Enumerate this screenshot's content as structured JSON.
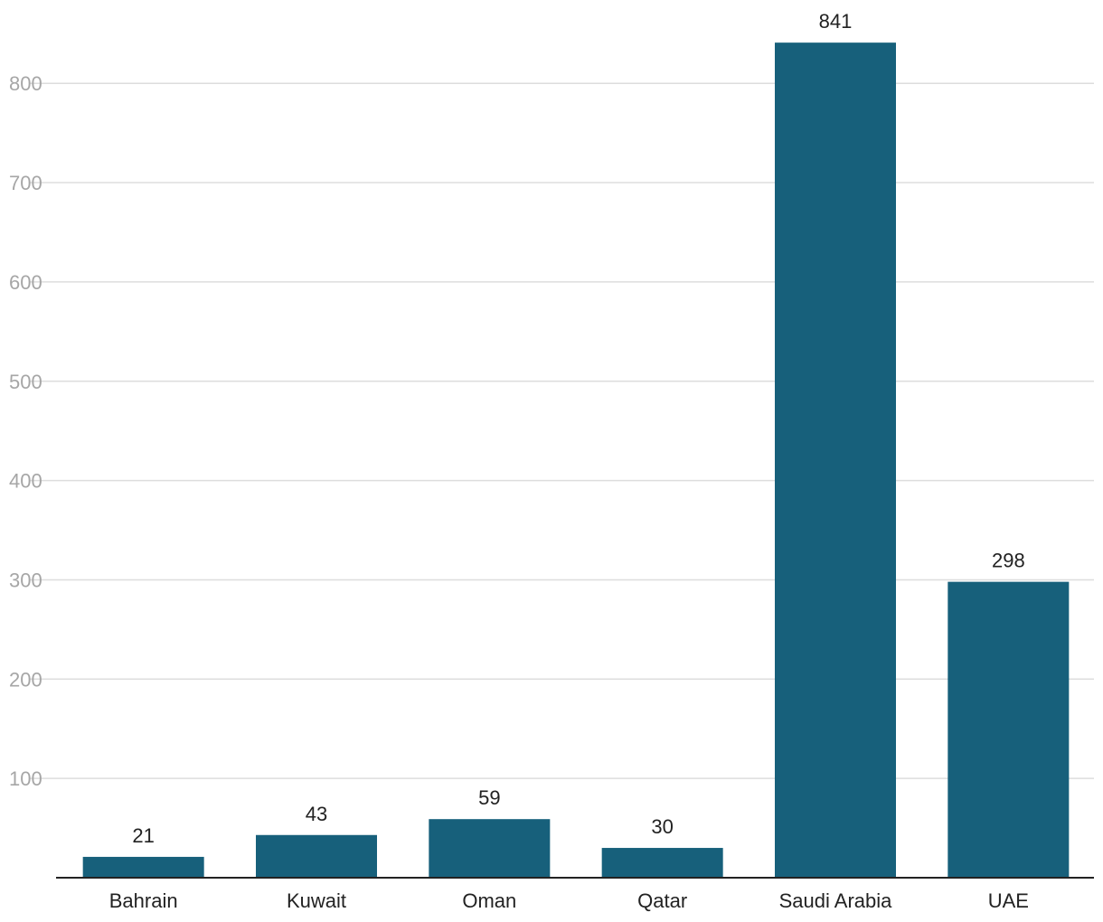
{
  "chart_data": {
    "type": "bar",
    "title": "",
    "xlabel": "",
    "ylabel": "",
    "categories": [
      "Bahrain",
      "Kuwait",
      "Oman",
      "Qatar",
      "Saudi Arabia",
      "UAE"
    ],
    "values": [
      21,
      43,
      59,
      30,
      841,
      298
    ],
    "data_labels": [
      "21",
      "43",
      "59",
      "30",
      "841",
      "298"
    ],
    "y_ticks": [
      100,
      200,
      300,
      400,
      500,
      600,
      700,
      800
    ],
    "y_tick_labels": [
      "100",
      "200",
      "300",
      "400",
      "500",
      "600",
      "700",
      "800"
    ],
    "ylim": [
      0,
      875
    ],
    "grid": true,
    "legend": "none",
    "colors": {
      "bar": "#17607b",
      "grid": "#dddddd",
      "axis": "#222222",
      "y_tick_text": "#a6a6a6",
      "label_text": "#222222"
    }
  }
}
